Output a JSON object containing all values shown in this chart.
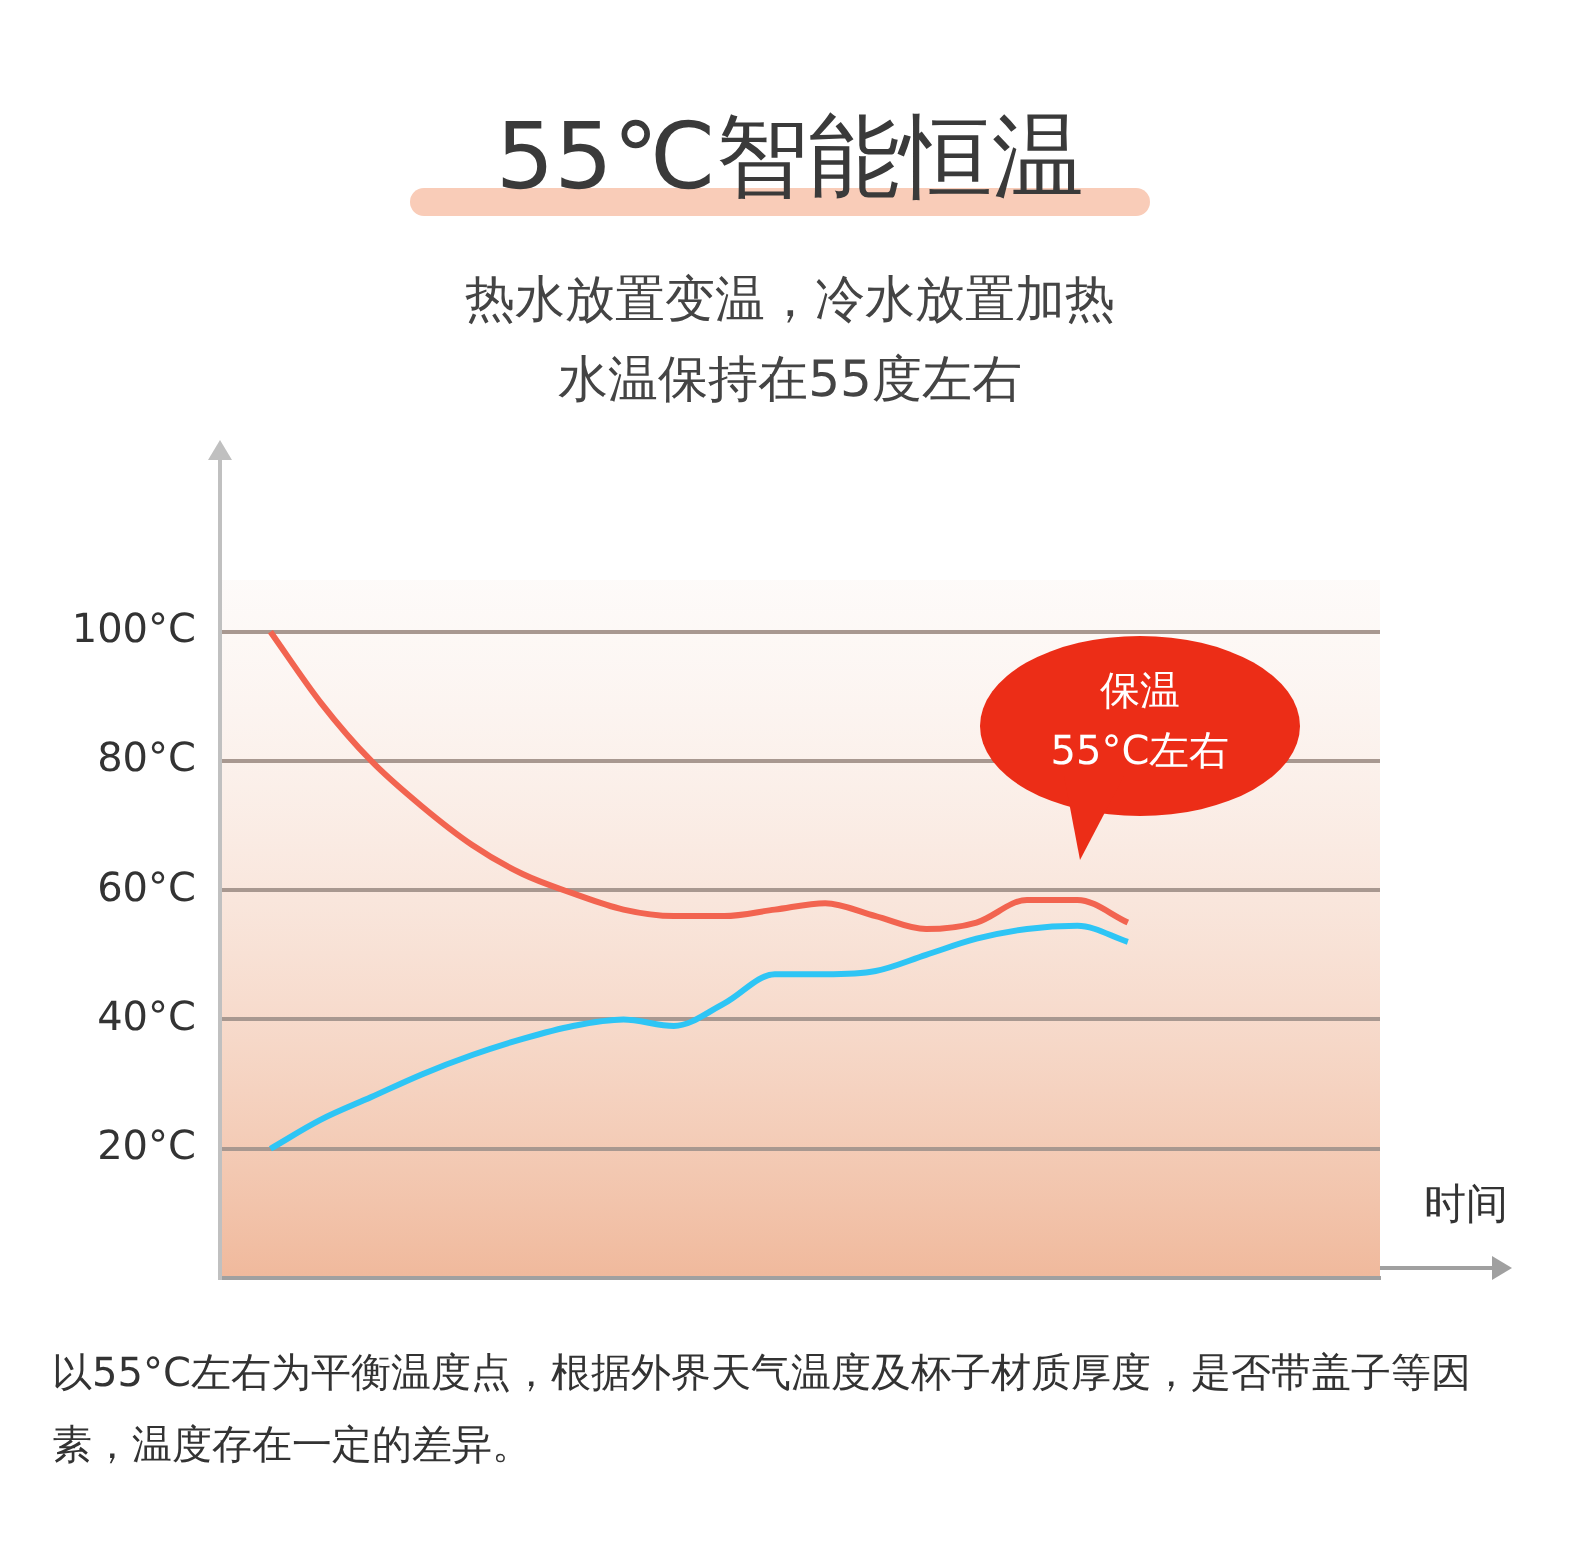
{
  "chart_data": {
    "type": "line",
    "title": "55℃智能恒温",
    "subtitle": "热水放置变温，冷水放置加热水温保持在55度左右",
    "xlabel": "时间",
    "annotations": [
      "保温\n55°C左右",
      "以55°C左右为平衡温度点，根据外界天气温度及杯子材质厚度，是否带盖子等因素，温度存在一定的差异。"
    ],
    "categories": [
      null,
      null,
      null,
      null,
      null,
      null,
      null,
      null,
      null,
      null,
      null,
      null,
      null,
      null,
      null,
      null,
      null,
      null,
      null,
      null,
      null,
      null,
      null,
      null
    ],
    "series": [
      {
        "color": "#f26450",
        "values": [
          null,
          100,
          89,
          80,
          73,
          67,
          62.5,
          59.5,
          57,
          56,
          56,
          57,
          58,
          56,
          54,
          55,
          58.5,
          58.5,
          55,
          null,
          null,
          null,
          null,
          null
        ]
      },
      {
        "color": "#2ec5f5",
        "values": [
          null,
          20,
          24.5,
          28,
          31.5,
          34.5,
          37,
          39,
          40,
          39,
          42.5,
          47,
          47,
          47.5,
          50,
          52.5,
          54,
          54.5,
          52,
          null,
          null,
          null,
          null,
          null
        ]
      }
    ],
    "ylim": [
      0,
      108
    ],
    "yticks": [
      {
        "value": 20,
        "label": "20°C"
      },
      {
        "value": 40,
        "label": "40°C"
      },
      {
        "value": 60,
        "label": "60°C"
      },
      {
        "value": 80,
        "label": "80°C"
      },
      {
        "value": 100,
        "label": "100°C"
      }
    ],
    "grid": "y",
    "marker": "none",
    "line_style": "solid",
    "tick_labels": "y"
  }
}
